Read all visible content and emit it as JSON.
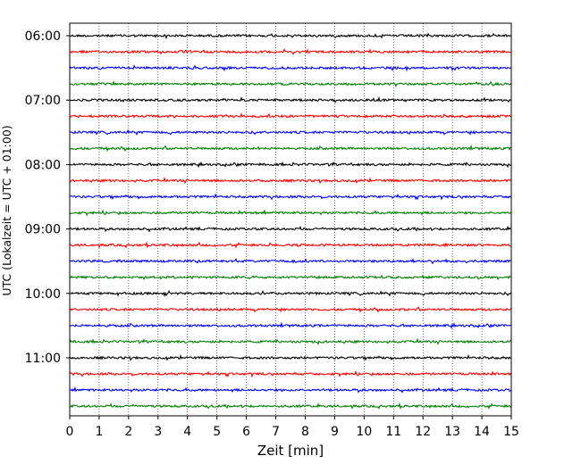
{
  "chart_data": {
    "type": "line",
    "title": "",
    "xlabel": "Zeit  [min]",
    "ylabel": "UTC (Lokalzeit = UTC + 01:00)",
    "xlim": [
      0,
      15
    ],
    "x_ticks": [
      "0",
      "1",
      "2",
      "3",
      "4",
      "5",
      "6",
      "7",
      "8",
      "9",
      "10",
      "11",
      "12",
      "13",
      "14",
      "15"
    ],
    "y_ticks": [
      "06:00",
      "07:00",
      "08:00",
      "09:00",
      "10:00",
      "11:00"
    ],
    "grid": "vertical dotted lines at each minute",
    "legend": "none",
    "trace_colors": [
      "#000000",
      "#ff0000",
      "#0000ff",
      "#008000"
    ],
    "series": [
      {
        "start": "06:00"
      },
      {
        "start": "06:15"
      },
      {
        "start": "06:30"
      },
      {
        "start": "06:45"
      },
      {
        "start": "07:00"
      },
      {
        "start": "07:15"
      },
      {
        "start": "07:30"
      },
      {
        "start": "07:45"
      },
      {
        "start": "08:00"
      },
      {
        "start": "08:15"
      },
      {
        "start": "08:30"
      },
      {
        "start": "08:45"
      },
      {
        "start": "09:00"
      },
      {
        "start": "09:15"
      },
      {
        "start": "09:30"
      },
      {
        "start": "09:45"
      },
      {
        "start": "10:00"
      },
      {
        "start": "10:15"
      },
      {
        "start": "10:30"
      },
      {
        "start": "10:45"
      },
      {
        "start": "11:00"
      },
      {
        "start": "11:15"
      },
      {
        "start": "11:30"
      },
      {
        "start": "11:45"
      }
    ]
  }
}
